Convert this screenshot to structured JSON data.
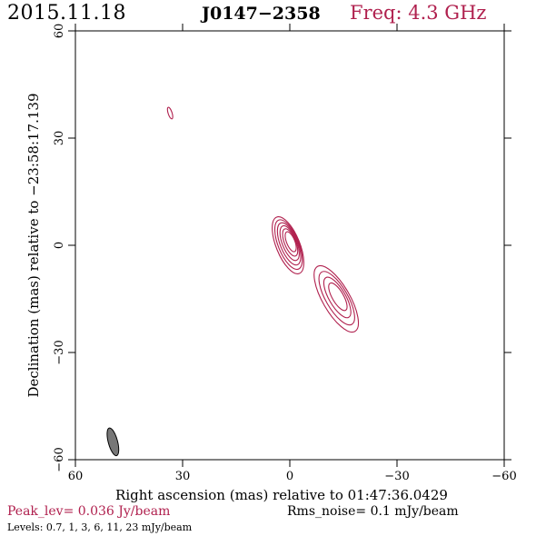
{
  "header": {
    "date": "2015.11.18",
    "source": "J0147−2358",
    "freq": "Freq: 4.3 GHz"
  },
  "footer": {
    "peak": "Peak_lev=  0.036 Jy/beam",
    "rms": "Rms_noise=   0.1 mJy/beam",
    "levels": "Levels: 0.7,    1,    3,    6,   11,    23 mJy/beam"
  },
  "colors": {
    "contour": "#b0204e",
    "beam": "#777777",
    "axes": "#000000"
  },
  "chart_data": {
    "type": "contour",
    "xlabel": "Right ascension (mas) relative to 01:47:36.0429",
    "ylabel": "Declination (mas) relative to −23:58:17.139",
    "xlim": [
      60,
      -60
    ],
    "ylim": [
      -60,
      60
    ],
    "xticks": [
      60,
      30,
      0,
      -30,
      -60
    ],
    "yticks": [
      60,
      30,
      0,
      -30,
      -60
    ],
    "xtick_labels": [
      "60",
      "30",
      "0",
      "−30",
      "−60"
    ],
    "ytick_labels": [
      "60",
      "30",
      "0",
      "−30",
      "−60"
    ],
    "levels_mJy_per_beam": [
      0.7,
      1,
      3,
      6,
      11,
      23
    ],
    "components": [
      {
        "x": 0.5,
        "y": 0,
        "major": 8.5,
        "minor": 3.3,
        "angle": 22,
        "levels": 6
      },
      {
        "x": -13,
        "y": -15,
        "major": 10.5,
        "minor": 3.8,
        "angle": 30,
        "levels": 4
      },
      {
        "x": 33.5,
        "y": 37,
        "major": 1.7,
        "minor": 0.55,
        "angle": 18,
        "levels": 1
      }
    ],
    "beam": {
      "x": 49.5,
      "y": -55,
      "major": 4,
      "minor": 1.3,
      "angle": 15
    }
  }
}
